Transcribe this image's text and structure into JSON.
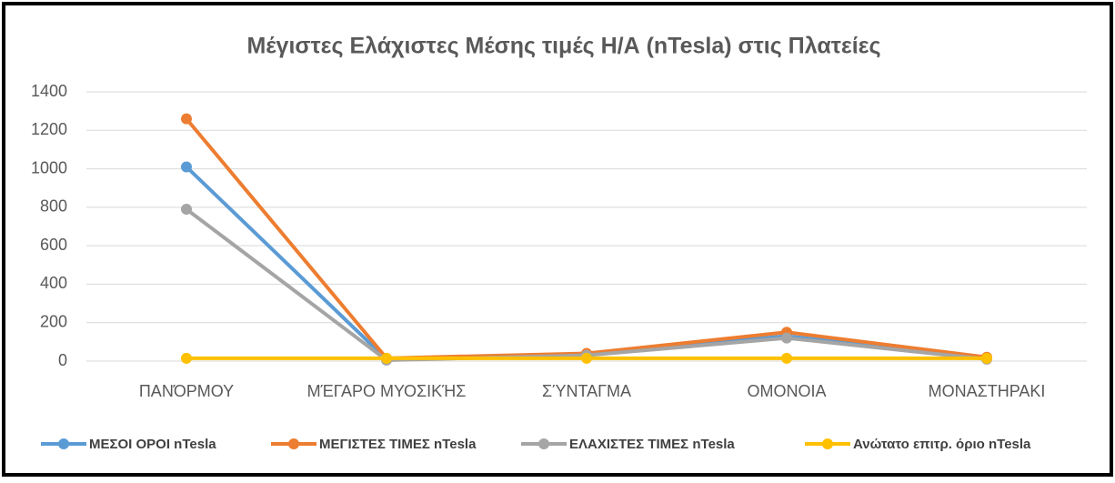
{
  "chart_data": {
    "type": "line",
    "title": "Μέγιστες  Ελάχιστες Μέσης τιμές Η/Α (nTesla)  στις Πλατείες",
    "categories": [
      "ΠΑΝΌΡΜΟΥ",
      "ΜΈΓΑΡΟ ΜΥΟΣΙΚΉΣ",
      "ΣΎΝΤΑΓΜΑ",
      "ΟΜΟΝΟΙΑ",
      "ΜΟΝΑΣΤΗΡΑΚΙ"
    ],
    "series": [
      {
        "name": "ΜΕΣΟΙ ΟΡΟΙ nTesla",
        "color": "#5b9bd5",
        "values": [
          1010,
          10,
          35,
          130,
          15
        ]
      },
      {
        "name": "ΜΕΓΙΣΤΕΣ ΤΙΜΕΣ nTesla",
        "color": "#ed7d31",
        "values": [
          1260,
          15,
          40,
          150,
          20
        ]
      },
      {
        "name": "ΕΛΑΧΙΣΤΕΣ ΤΙΜΕΣ nTesla",
        "color": "#a5a5a5",
        "values": [
          790,
          5,
          30,
          120,
          10
        ]
      },
      {
        "name": "Ανώτατο επιτρ. όριο nTesla",
        "color": "#ffc000",
        "values": [
          15,
          15,
          15,
          15,
          15
        ]
      }
    ],
    "ylim": [
      0,
      1400
    ],
    "yticks": [
      0,
      200,
      400,
      600,
      800,
      1000,
      1200,
      1400
    ],
    "grid": true,
    "legend": "bottom"
  }
}
